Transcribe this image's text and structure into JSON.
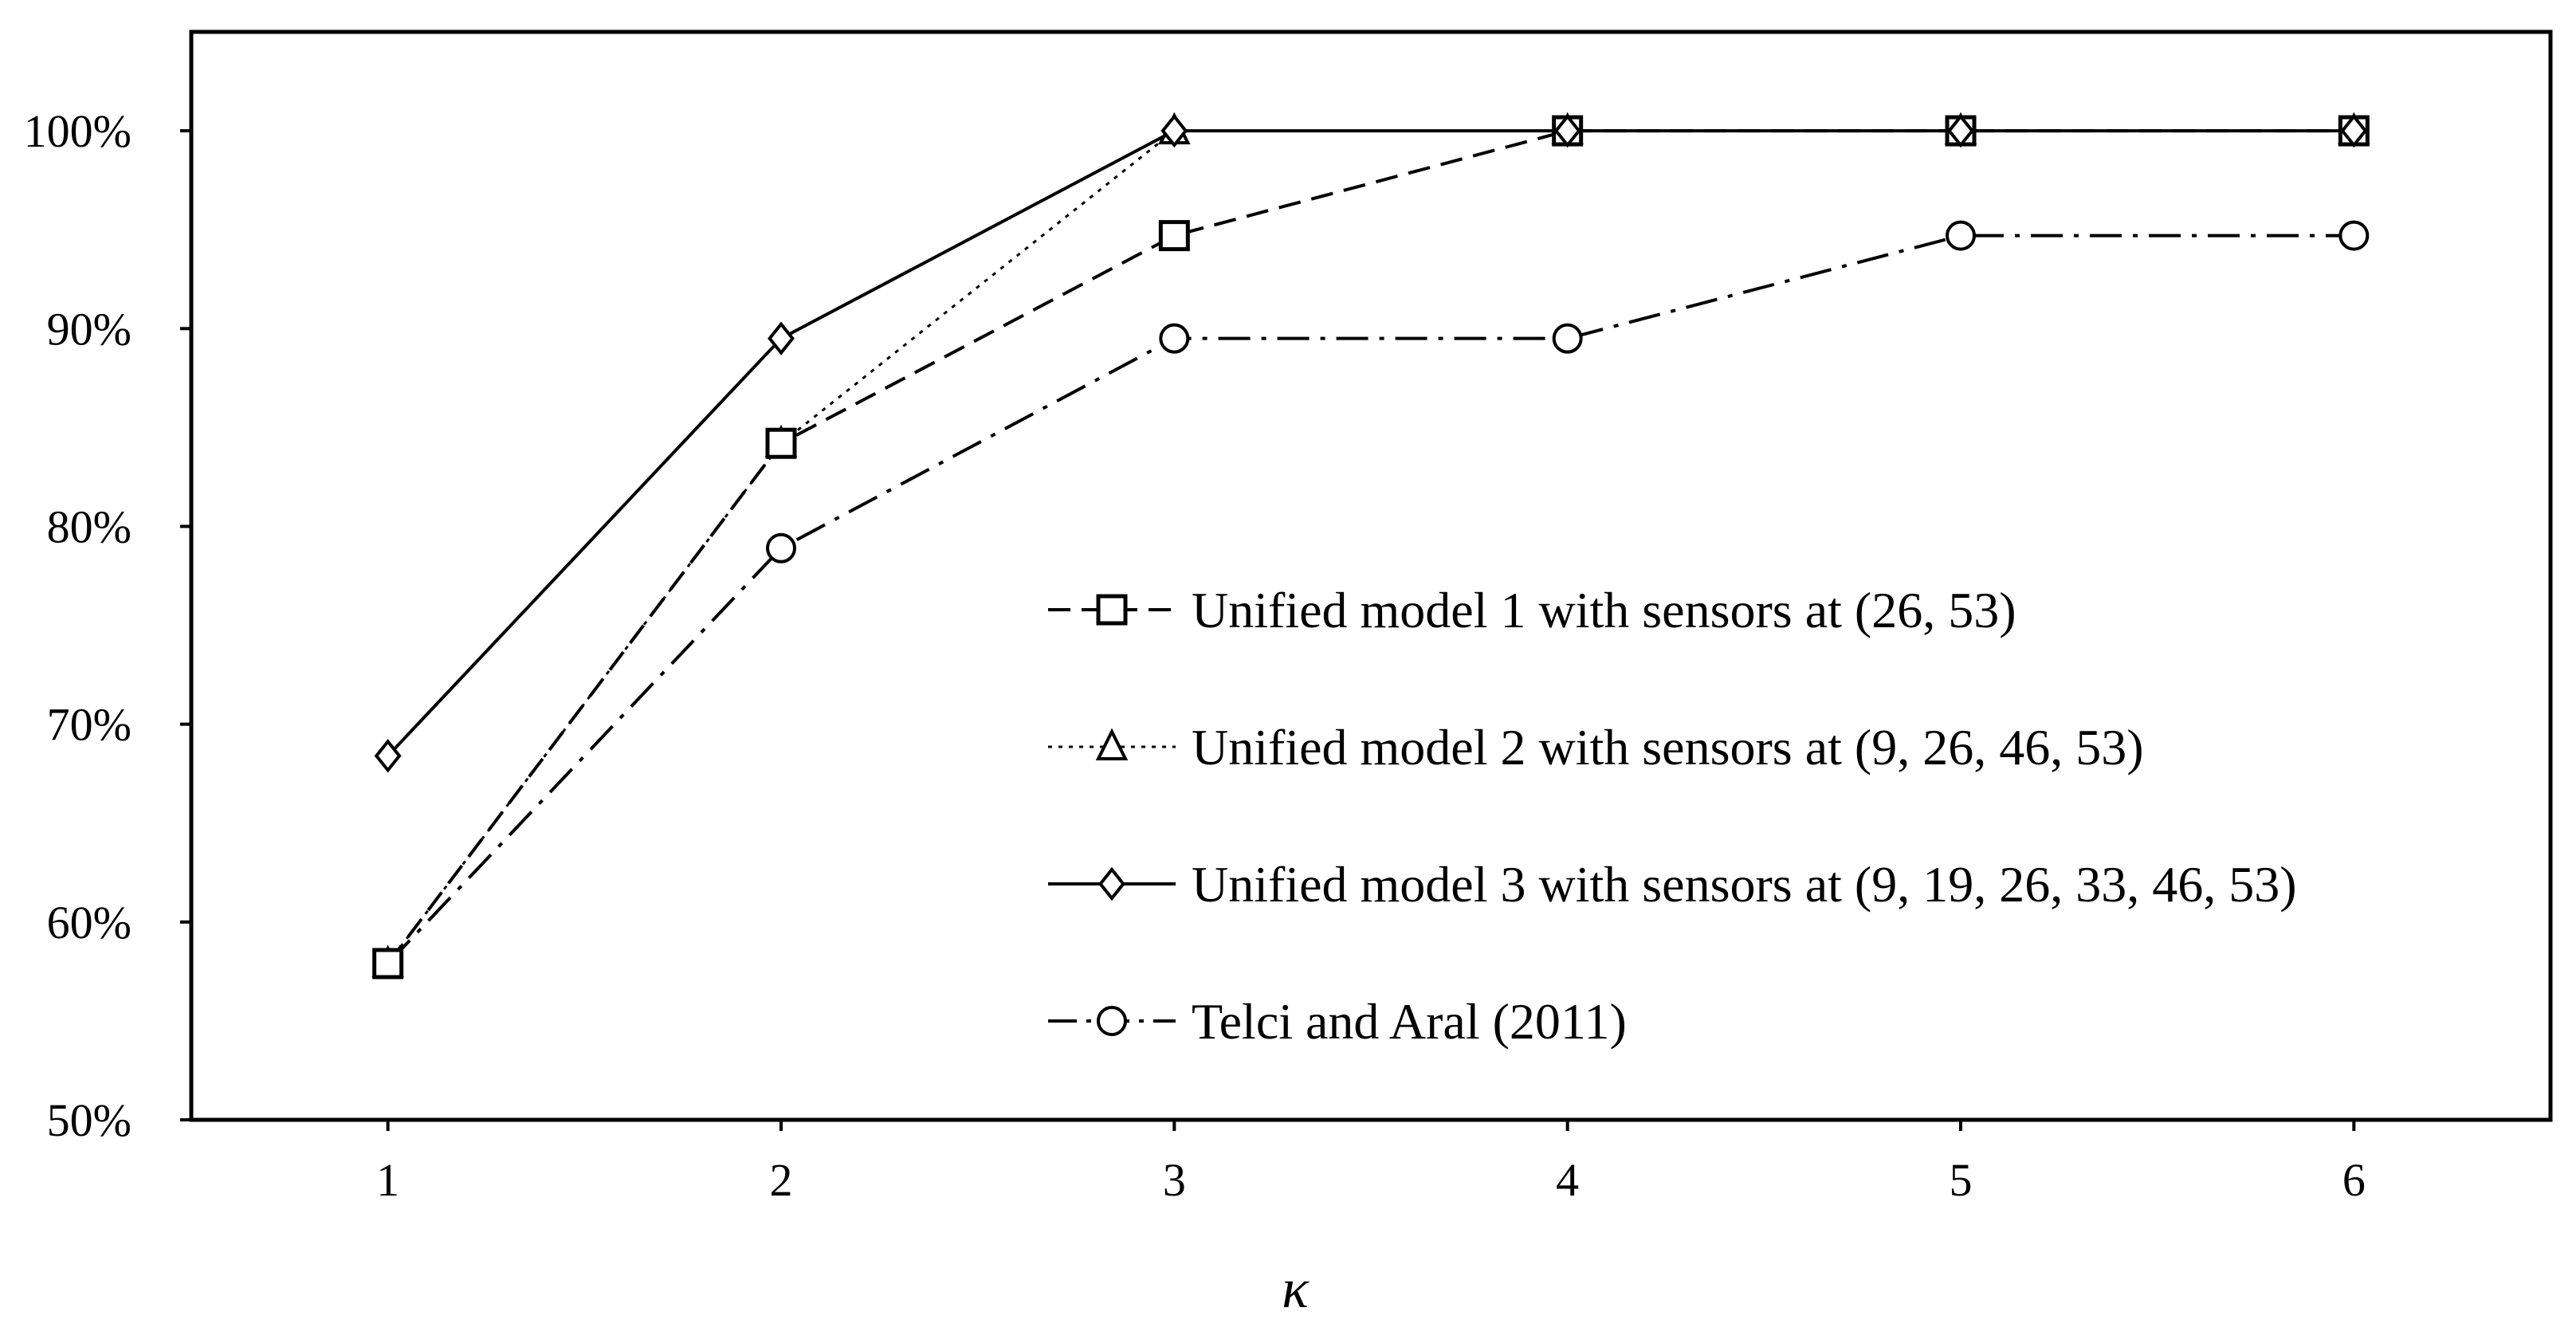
{
  "chart_data": {
    "type": "line",
    "title": "",
    "xlabel": "κ",
    "ylabel": "",
    "x": [
      1,
      2,
      3,
      4,
      5,
      6
    ],
    "x_tick_labels": [
      "1",
      "2",
      "3",
      "4",
      "5",
      "6"
    ],
    "y_tick_labels": [
      "50%",
      "60%",
      "70%",
      "80%",
      "90%",
      "100%"
    ],
    "ylim": [
      50,
      105
    ],
    "xlim": [
      0.5,
      6.5
    ],
    "grid": false,
    "legend_position": "center-right",
    "series": [
      {
        "name": "Unified model 1 with sensors at (26, 53)",
        "marker": "square",
        "line_style": "dashed",
        "values": [
          57.9,
          84.2,
          94.7,
          100,
          100,
          100
        ]
      },
      {
        "name": "Unified model 2 with sensors at (9, 26, 46, 53)",
        "marker": "triangle",
        "line_style": "dotted",
        "values": [
          57.9,
          84.2,
          100,
          100,
          100,
          100
        ]
      },
      {
        "name": "Unified model 3 with sensors at (9, 19, 26, 33, 46, 53)",
        "marker": "diamond",
        "line_style": "solid",
        "values": [
          68.4,
          89.5,
          100,
          100,
          100,
          100
        ]
      },
      {
        "name": "Telci and Aral (2011)",
        "marker": "circle",
        "line_style": "dash-dot",
        "values": [
          57.9,
          78.9,
          89.5,
          89.5,
          94.7,
          94.7
        ]
      }
    ]
  }
}
